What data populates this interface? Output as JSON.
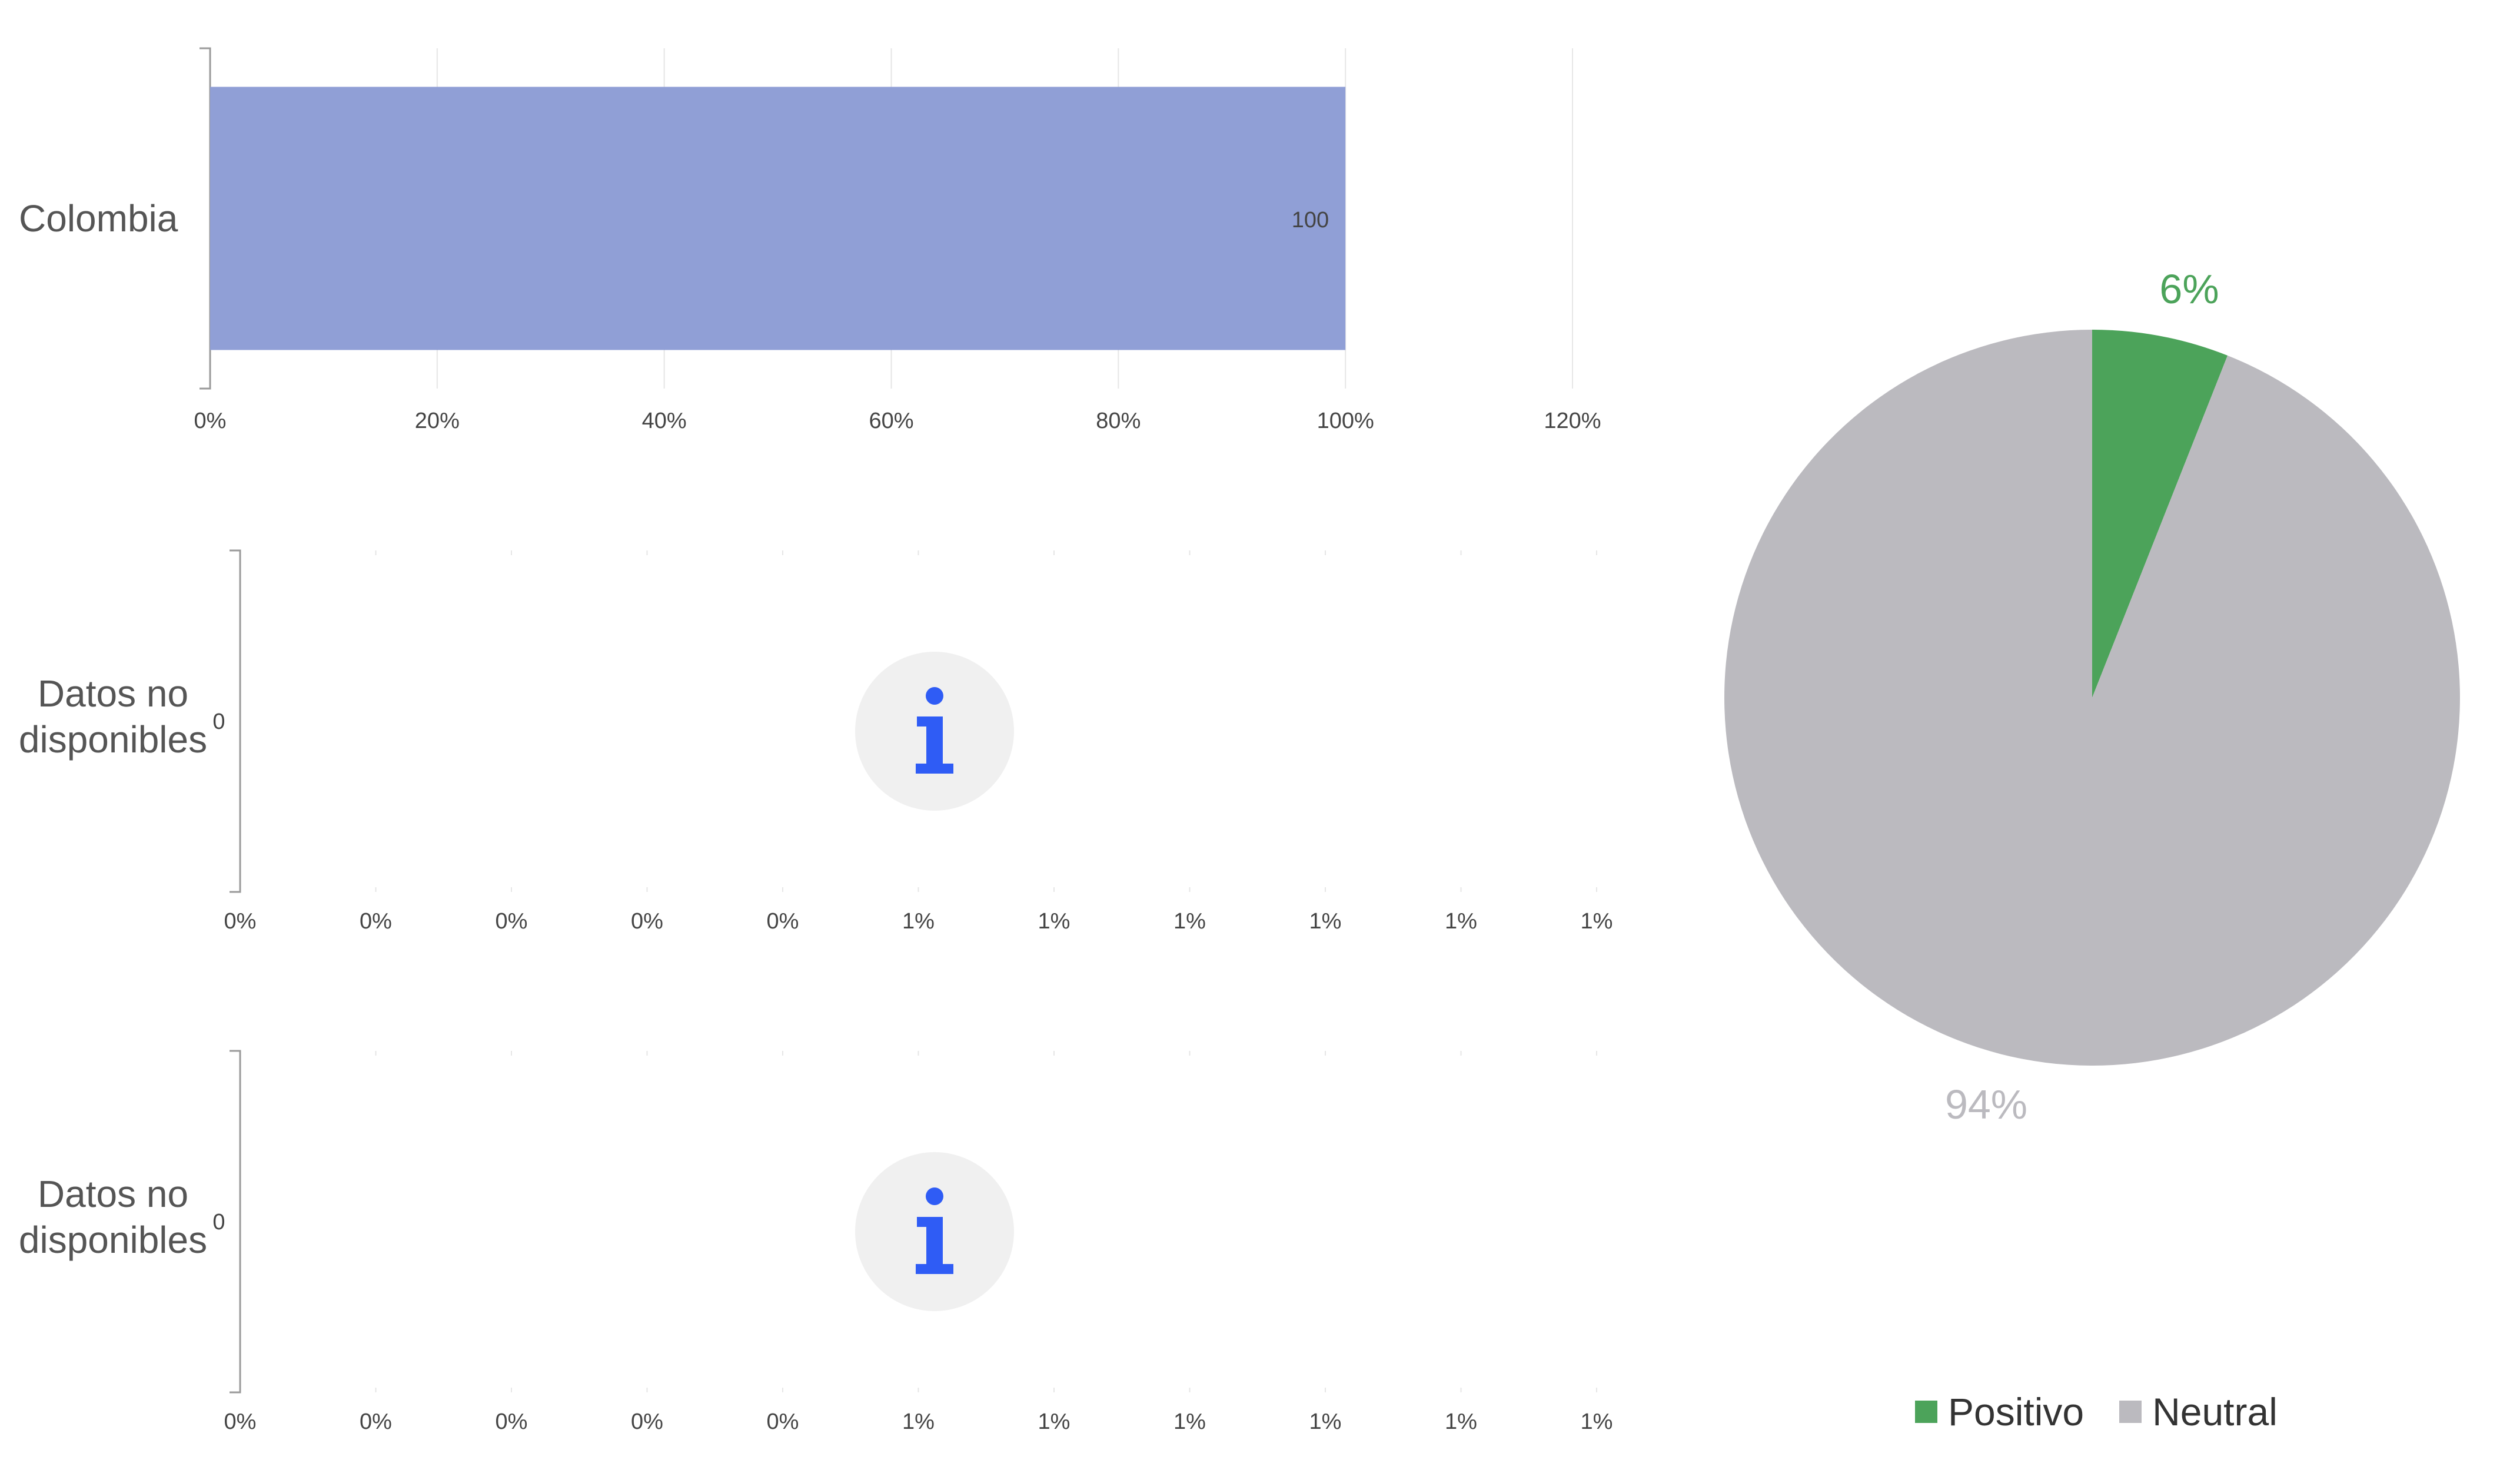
{
  "chart_data": [
    {
      "type": "bar",
      "orientation": "horizontal",
      "categories": [
        "Colombia"
      ],
      "values": [
        100
      ],
      "data_labels": [
        "100"
      ],
      "xlim": [
        0,
        120
      ],
      "xticks": [
        "0%",
        "20%",
        "40%",
        "60%",
        "80%",
        "100%",
        "120%"
      ],
      "bar_color": "#909fd6"
    },
    {
      "type": "bar",
      "orientation": "horizontal",
      "categories": [
        "Datos no disponibles"
      ],
      "values": [
        0
      ],
      "data_labels": [
        "0"
      ],
      "xticks": [
        "0%",
        "0%",
        "0%",
        "0%",
        "0%",
        "1%",
        "1%",
        "1%",
        "1%",
        "1%",
        "1%"
      ],
      "info_icon": "info-icon"
    },
    {
      "type": "bar",
      "orientation": "horizontal",
      "categories": [
        "Datos no disponibles"
      ],
      "values": [
        0
      ],
      "data_labels": [
        "0"
      ],
      "xticks": [
        "0%",
        "0%",
        "0%",
        "0%",
        "0%",
        "1%",
        "1%",
        "1%",
        "1%",
        "1%",
        "1%"
      ],
      "info_icon": "info-icon"
    },
    {
      "type": "pie",
      "slices": [
        {
          "name": "Positivo",
          "value": 6,
          "label": "6%",
          "color": "#4ca35a"
        },
        {
          "name": "Neutral",
          "value": 94,
          "label": "94%",
          "color": "#bbbabf"
        }
      ],
      "legend_position": "bottom"
    }
  ],
  "colors": {
    "info_circle": "#f0f0f0",
    "info_glyph": "#2f5cf5"
  }
}
